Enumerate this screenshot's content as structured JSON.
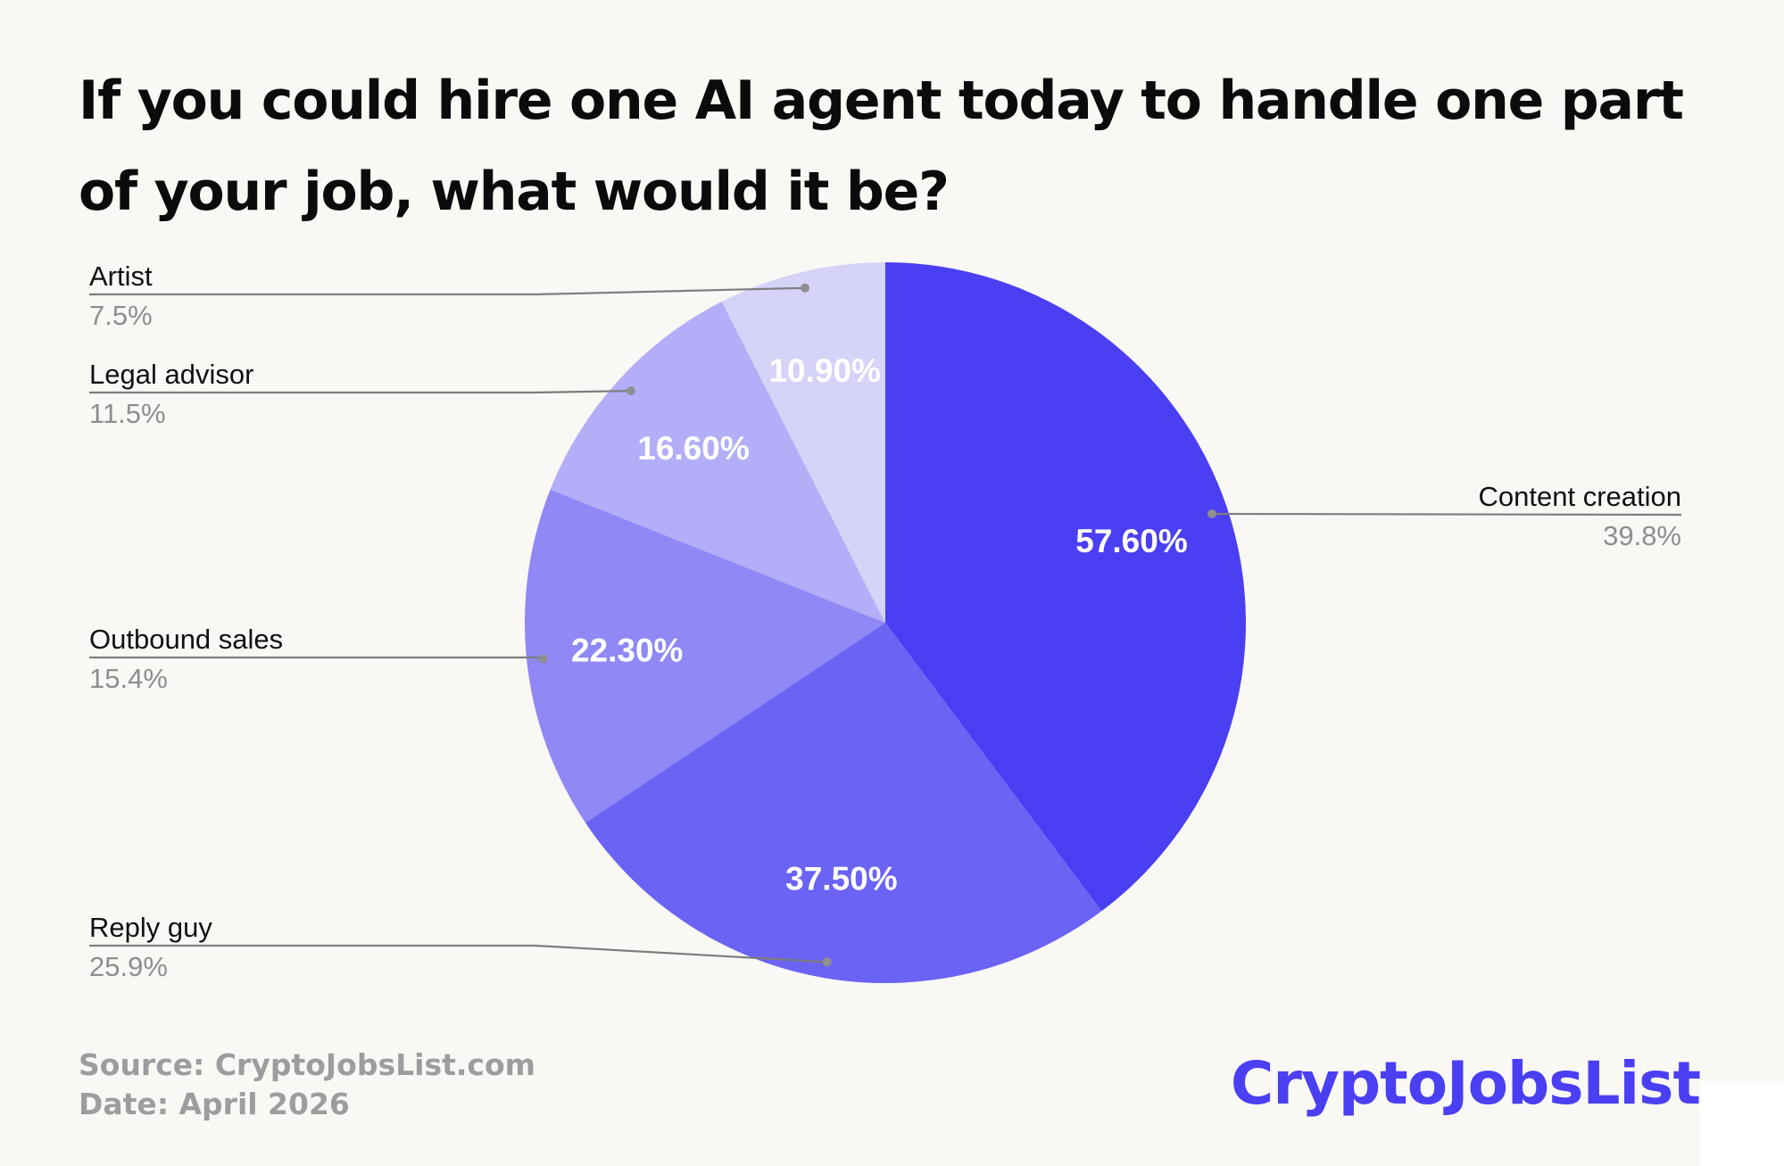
{
  "header": {
    "title": "If you could hire one AI agent today to handle one part of your job, what would it be?"
  },
  "chart_data": {
    "type": "pie",
    "title": "If you could hire one AI agent today to handle one part of your job, what would it be?",
    "start_angle_deg": 0,
    "direction": "clockwise",
    "slices": [
      {
        "label": "Content creation",
        "value": 39.8,
        "legend_value": "39.8%",
        "inner_label": "57.60%",
        "color": "#4a3ff2"
      },
      {
        "label": "Reply guy",
        "value": 25.9,
        "legend_value": "25.9%",
        "inner_label": "37.50%",
        "color": "#6b63f4"
      },
      {
        "label": "Outbound sales",
        "value": 15.4,
        "legend_value": "15.4%",
        "inner_label": "22.30%",
        "color": "#8f88f5"
      },
      {
        "label": "Legal advisor",
        "value": 11.5,
        "legend_value": "11.5%",
        "inner_label": "16.60%",
        "color": "#b3aef7"
      },
      {
        "label": "Artist",
        "value": 7.5,
        "legend_value": "7.5%",
        "inner_label": "10.90%",
        "color": "#d6d3f8"
      }
    ],
    "label_color": "#ffffff",
    "leader_line_color": "#7d7d7d",
    "legend_name_color": "#111111",
    "legend_value_color": "#8e8e8e"
  },
  "footer": {
    "source": "Source: CryptoJobsList.com",
    "date": "Date: April 2026"
  },
  "brand": {
    "name": "CryptoJobsList",
    "color": "#4a3ff2"
  }
}
